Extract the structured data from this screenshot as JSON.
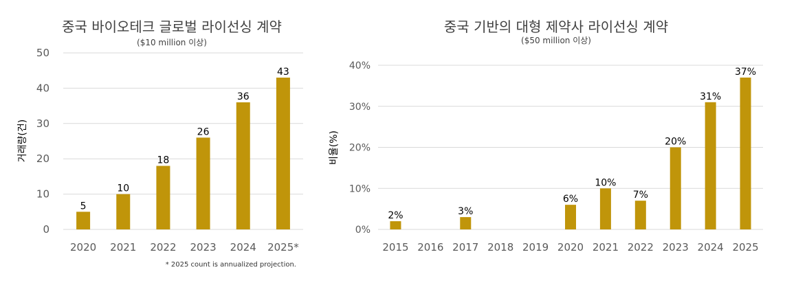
{
  "colors": {
    "bar": "#C0950A",
    "grid": "#D9D9D9",
    "axis_text": "#595959",
    "title": "#404040",
    "label": "#000000"
  },
  "chart_data": [
    {
      "type": "bar",
      "title": "중국 바이오테크 글로벌 라이선싱 계약",
      "subtitle": "($10 million 이상)",
      "xlabel": "",
      "ylabel": "거래량(건)",
      "categories": [
        "2020",
        "2021",
        "2022",
        "2023",
        "2024",
        "2025*"
      ],
      "values": [
        5,
        10,
        18,
        26,
        36,
        43
      ],
      "data_labels": [
        "5",
        "10",
        "18",
        "26",
        "36",
        "43"
      ],
      "ylim": [
        0,
        50
      ],
      "yticks": [
        0,
        10,
        20,
        30,
        40,
        50
      ],
      "ytick_labels": [
        "0",
        "10",
        "20",
        "30",
        "40",
        "50"
      ],
      "grid": true,
      "footnote": "* 2025 count is annualized projection."
    },
    {
      "type": "bar",
      "title": "중국 기반의 대형 제약사 라이선싱 계약",
      "subtitle": "($50 million 이상)",
      "xlabel": "",
      "ylabel": "비율(%)",
      "categories": [
        "2015",
        "2016",
        "2017",
        "2018",
        "2019",
        "2020",
        "2021",
        "2022",
        "2023",
        "2024",
        "2025"
      ],
      "values": [
        2,
        0,
        3,
        0,
        0,
        6,
        10,
        7,
        20,
        31,
        37
      ],
      "data_labels": [
        "2%",
        "",
        "3%",
        "",
        "",
        "6%",
        "10%",
        "7%",
        "20%",
        "31%",
        "37%"
      ],
      "ylim": [
        0,
        40
      ],
      "yticks": [
        0,
        10,
        20,
        30,
        40
      ],
      "ytick_labels": [
        "0%",
        "10%",
        "20%",
        "30%",
        "40%"
      ],
      "grid": true
    }
  ]
}
